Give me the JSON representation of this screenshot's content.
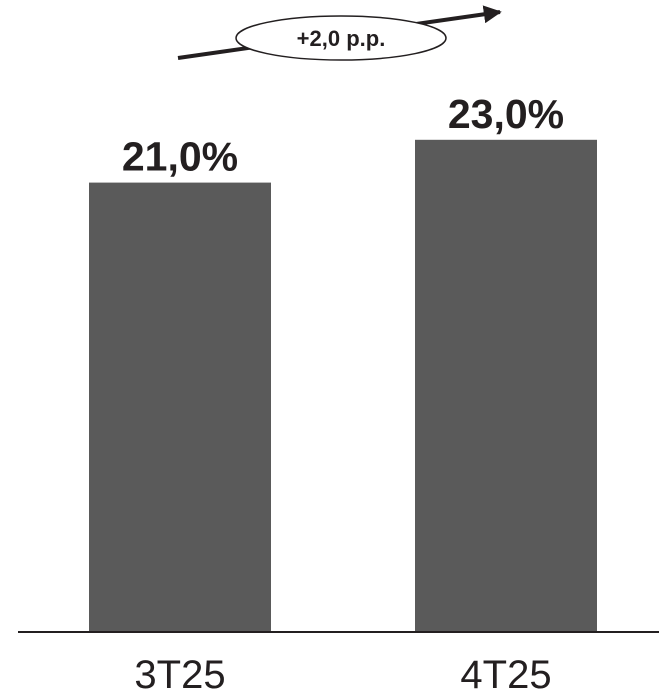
{
  "chart_data": {
    "type": "bar",
    "categories": [
      "3T25",
      "4T25"
    ],
    "values": [
      21.0,
      23.0
    ],
    "value_labels": [
      "21,0%",
      "23,0%"
    ],
    "ylim": [
      0,
      25
    ],
    "grid": false,
    "bar_color": "#5a5a5a",
    "annotation": {
      "text": "+2,0 p.p.",
      "direction": "up"
    }
  }
}
